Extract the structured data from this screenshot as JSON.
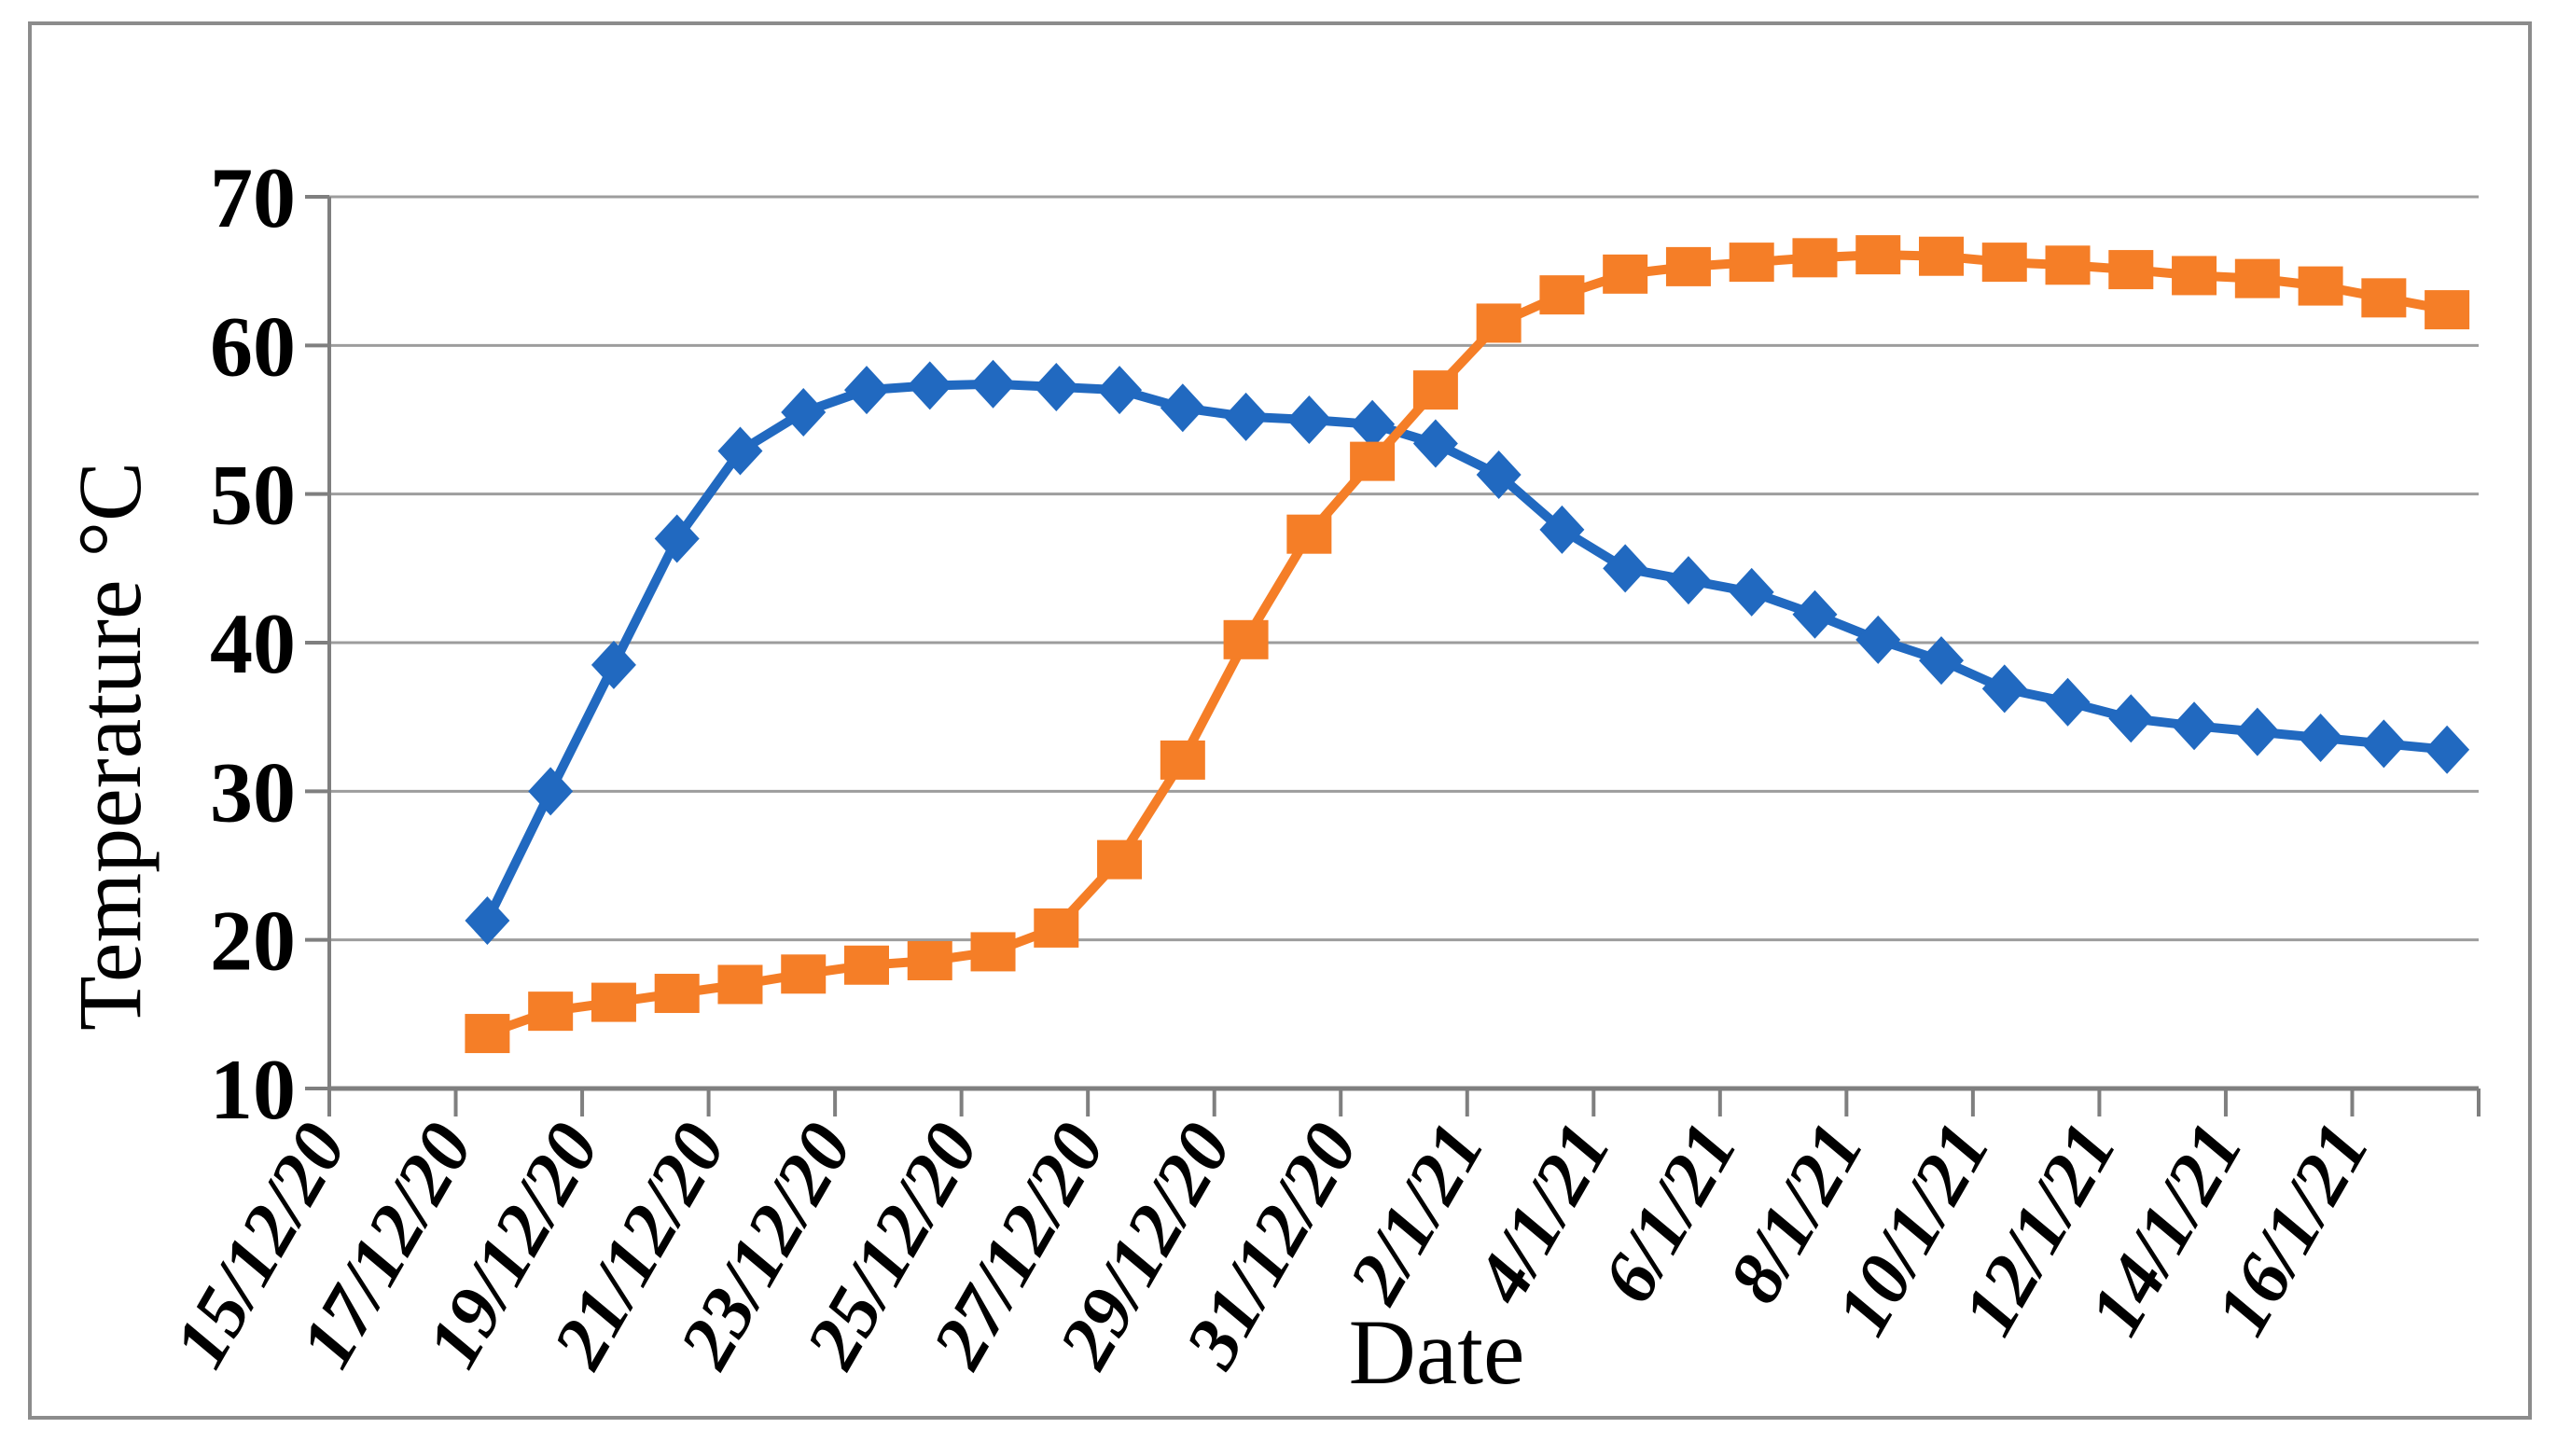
{
  "figure": {
    "background": "#ffffff",
    "border_color": "#8c8c8c",
    "xlabel": "Date",
    "ylabel": "Temperature °C"
  },
  "chart_data": {
    "type": "line",
    "title": "",
    "xlabel": "Date",
    "ylabel": "Temperature °C",
    "ylim": [
      10,
      70
    ],
    "ytick_interval": 10,
    "ytick_labels": [
      "70",
      "60",
      "50",
      "40",
      "30",
      "20",
      "10"
    ],
    "grid": "horizontal",
    "legend": "none",
    "xtick_labels": [
      "15/12/20",
      "17/12/20",
      "19/12/20",
      "21/12/20",
      "23/12/20",
      "25/12/20",
      "27/12/20",
      "29/12/20",
      "31/12/20",
      "2/1/21",
      "4/1/21",
      "6/1/21",
      "8/1/21",
      "10/1/21",
      "12/1/21",
      "14/1/21",
      "16/1/21"
    ],
    "x_total_day_categories": 34,
    "x_first_category": "15/12/20",
    "x_tick_every_days": 2,
    "colors": {
      "series1": "#2169c0",
      "series2": "#f57e27",
      "gridline": "#9d9d9d",
      "axis": "#7f7f7f",
      "text": "#000000",
      "frame": "#8c8c8c"
    },
    "x": [
      "17/12/20",
      "18/12/20",
      "19/12/20",
      "20/12/20",
      "21/12/20",
      "22/12/20",
      "23/12/20",
      "24/12/20",
      "25/12/20",
      "26/12/20",
      "27/12/20",
      "28/12/20",
      "29/12/20",
      "30/12/20",
      "31/12/20",
      "1/1/21",
      "2/1/21",
      "3/1/21",
      "4/1/21",
      "5/1/21",
      "6/1/21",
      "7/1/21",
      "8/1/21",
      "9/1/21",
      "10/1/21",
      "11/1/21",
      "12/1/21",
      "13/1/21",
      "14/1/21",
      "15/1/21",
      "16/1/21",
      "17/1/21"
    ],
    "series": [
      {
        "name": "blue-diamond-series",
        "marker": "diamond",
        "color": "#2169c0",
        "start_category_index": 2,
        "values": [
          21.3,
          30.0,
          38.5,
          47.0,
          52.9,
          55.5,
          57.0,
          57.3,
          57.4,
          57.2,
          57.0,
          55.8,
          55.2,
          55.0,
          54.7,
          53.4,
          51.3,
          47.6,
          45.0,
          44.2,
          43.4,
          41.9,
          40.2,
          38.8,
          36.9,
          36.0,
          34.9,
          34.4,
          34.0,
          33.6,
          33.2,
          32.8
        ]
      },
      {
        "name": "orange-square-series",
        "marker": "square",
        "color": "#f57e27",
        "start_category_index": 2,
        "values": [
          13.7,
          15.2,
          15.8,
          16.4,
          17.0,
          17.7,
          18.3,
          18.6,
          19.2,
          20.8,
          25.4,
          32.1,
          40.2,
          47.3,
          52.2,
          57.0,
          61.5,
          63.4,
          64.8,
          65.3,
          65.6,
          65.9,
          66.1,
          66.0,
          65.6,
          65.4,
          65.1,
          64.7,
          64.5,
          64.0,
          63.2,
          62.4
        ]
      }
    ]
  }
}
